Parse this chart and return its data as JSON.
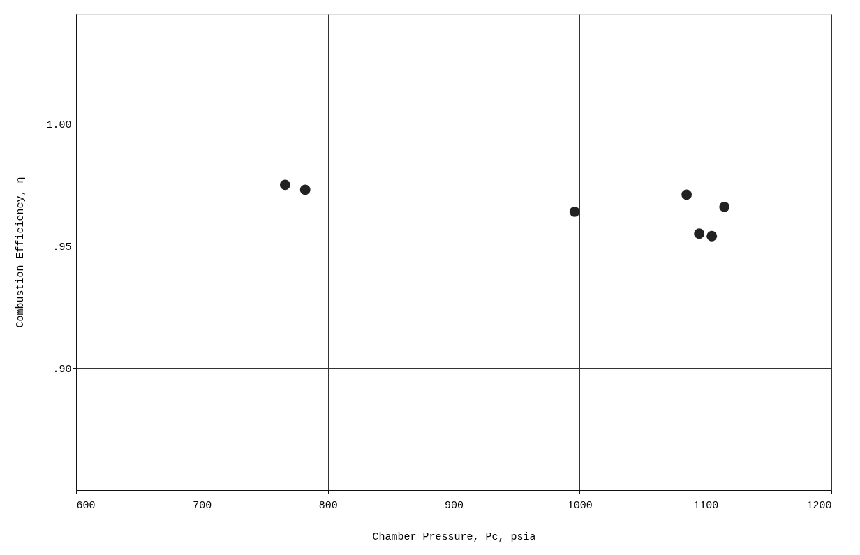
{
  "chart_data": {
    "type": "scatter",
    "xlabel": "Chamber Pressure, Pc, psia",
    "ylabel": "Combustion Efficiency, η",
    "x": [
      766,
      782,
      996,
      1085,
      1095,
      1105,
      1115
    ],
    "values": [
      0.975,
      0.973,
      0.964,
      0.971,
      0.955,
      0.954,
      0.966
    ],
    "color": "#222222",
    "marker": "circle",
    "xlim": [
      600,
      1200
    ],
    "xticks": [
      600,
      700,
      800,
      900,
      1000,
      1100,
      1200
    ],
    "ylim": [
      0.85,
      1.045
    ],
    "yticks": [
      {
        "value": 0.9,
        "label": ".90"
      },
      {
        "value": 0.95,
        "label": ".95"
      },
      {
        "value": 1.0,
        "label": "1.00"
      }
    ],
    "grid": true
  }
}
